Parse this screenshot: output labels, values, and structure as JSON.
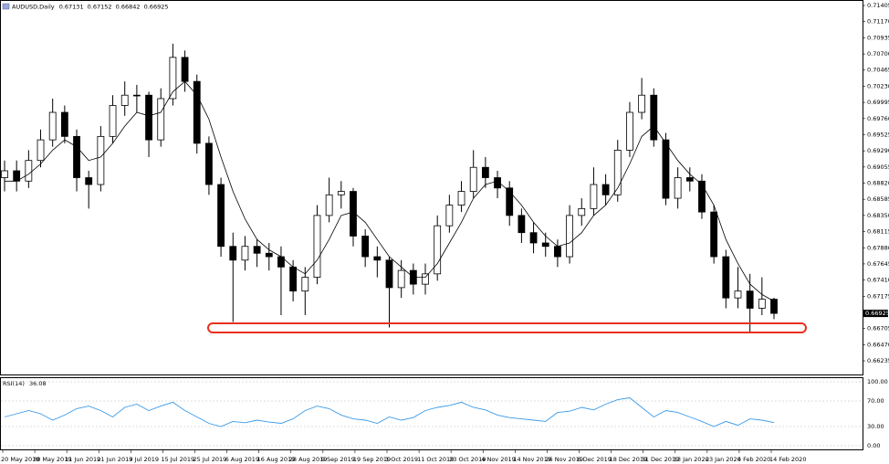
{
  "chart_data": [
    {
      "type": "candlestick",
      "title": "AUDUSD,Daily",
      "open": [
        0.689,
        0.69,
        0.6885,
        0.6915,
        0.6945,
        0.6985,
        0.695,
        0.689,
        0.688,
        0.695,
        0.6995,
        0.701,
        0.701,
        0.6945,
        0.7005,
        0.7065,
        0.703,
        0.694,
        0.688,
        0.679,
        0.677,
        0.679,
        0.678,
        0.6775,
        0.676,
        0.6725,
        0.6745,
        0.6835,
        0.6865,
        0.687,
        0.6805,
        0.6775,
        0.677,
        0.673,
        0.6755,
        0.6735,
        0.675,
        0.682,
        0.685,
        0.687,
        0.6905,
        0.689,
        0.6875,
        0.6835,
        0.681,
        0.6795,
        0.679,
        0.6775,
        0.6835,
        0.6845,
        0.688,
        0.6865,
        0.693,
        0.6985,
        0.701,
        0.6945,
        0.686,
        0.689,
        0.6885,
        0.684,
        0.6775,
        0.6715,
        0.6725,
        0.67,
        0.67131
      ],
      "high": [
        0.6915,
        0.6915,
        0.693,
        0.696,
        0.7005,
        0.6995,
        0.696,
        0.69,
        0.6965,
        0.701,
        0.703,
        0.7025,
        0.7015,
        0.702,
        0.7085,
        0.7075,
        0.704,
        0.695,
        0.689,
        0.681,
        0.6805,
        0.68,
        0.6795,
        0.679,
        0.677,
        0.676,
        0.685,
        0.689,
        0.6885,
        0.6875,
        0.6815,
        0.679,
        0.6775,
        0.677,
        0.6765,
        0.6765,
        0.6835,
        0.6865,
        0.6885,
        0.693,
        0.692,
        0.69,
        0.6885,
        0.6845,
        0.6825,
        0.681,
        0.68,
        0.685,
        0.686,
        0.6905,
        0.6895,
        0.6945,
        0.7,
        0.7035,
        0.702,
        0.6955,
        0.6905,
        0.6905,
        0.6895,
        0.685,
        0.6785,
        0.676,
        0.675,
        0.6745,
        0.67152
      ],
      "low": [
        0.687,
        0.687,
        0.6875,
        0.6905,
        0.6935,
        0.694,
        0.687,
        0.6845,
        0.687,
        0.694,
        0.698,
        0.6985,
        0.692,
        0.6935,
        0.6995,
        0.7015,
        0.6925,
        0.6865,
        0.6775,
        0.668,
        0.6755,
        0.676,
        0.6755,
        0.669,
        0.671,
        0.669,
        0.6735,
        0.6825,
        0.6845,
        0.679,
        0.676,
        0.6745,
        0.6672,
        0.6715,
        0.672,
        0.672,
        0.674,
        0.681,
        0.684,
        0.686,
        0.6875,
        0.686,
        0.682,
        0.6795,
        0.678,
        0.6775,
        0.676,
        0.6765,
        0.682,
        0.6835,
        0.685,
        0.6855,
        0.692,
        0.6975,
        0.6935,
        0.685,
        0.6845,
        0.687,
        0.683,
        0.6765,
        0.67,
        0.67,
        0.6665,
        0.669,
        0.66842
      ],
      "close": [
        0.69,
        0.6885,
        0.6915,
        0.6945,
        0.6985,
        0.695,
        0.689,
        0.688,
        0.695,
        0.6995,
        0.701,
        0.701,
        0.6945,
        0.7005,
        0.7065,
        0.703,
        0.694,
        0.688,
        0.679,
        0.677,
        0.679,
        0.678,
        0.6775,
        0.676,
        0.6725,
        0.6745,
        0.6835,
        0.6865,
        0.687,
        0.6805,
        0.6775,
        0.677,
        0.673,
        0.6755,
        0.6735,
        0.675,
        0.682,
        0.685,
        0.687,
        0.6905,
        0.689,
        0.6875,
        0.6835,
        0.681,
        0.6795,
        0.679,
        0.6775,
        0.6835,
        0.6845,
        0.688,
        0.6865,
        0.693,
        0.6985,
        0.701,
        0.6945,
        0.686,
        0.689,
        0.6885,
        0.684,
        0.6775,
        0.6715,
        0.6725,
        0.67,
        0.67131,
        0.66925
      ],
      "ma": [
        0.6885,
        0.6885,
        0.6895,
        0.691,
        0.693,
        0.6945,
        0.6935,
        0.6915,
        0.692,
        0.694,
        0.6965,
        0.6985,
        0.698,
        0.6985,
        0.7015,
        0.703,
        0.701,
        0.6975,
        0.692,
        0.687,
        0.683,
        0.68,
        0.6785,
        0.6775,
        0.676,
        0.675,
        0.677,
        0.68,
        0.6835,
        0.684,
        0.6825,
        0.68,
        0.6775,
        0.676,
        0.6745,
        0.6745,
        0.6765,
        0.6795,
        0.6825,
        0.686,
        0.688,
        0.6885,
        0.687,
        0.685,
        0.6825,
        0.6805,
        0.679,
        0.6795,
        0.681,
        0.6835,
        0.685,
        0.6875,
        0.691,
        0.695,
        0.6965,
        0.694,
        0.6915,
        0.6895,
        0.688,
        0.685,
        0.68,
        0.6765,
        0.6735,
        0.672,
        0.671
      ],
      "up_color": "#ffffff",
      "down_color": "#000000",
      "ma_color": "#000000",
      "ylim": [
        0.66036,
        0.71485
      ],
      "yticks": [
        0.71405,
        {
          "value": 0.7117,
          "label": "0.71170"
        },
        0.70935,
        {
          "value": 0.707,
          "label": "0.70700"
        },
        0.70465,
        {
          "value": 0.7023,
          "label": "0.70230"
        },
        0.69995,
        {
          "value": 0.6976,
          "label": "0.69760"
        },
        0.69525,
        {
          "value": 0.6929,
          "label": "0.69290"
        },
        0.69055,
        {
          "value": 0.6882,
          "label": "0.68820"
        },
        0.68585,
        {
          "value": 0.6835,
          "label": "0.68350"
        },
        0.68115,
        {
          "value": 0.6788,
          "label": "0.67880"
        },
        0.67645,
        {
          "value": 0.6741,
          "label": "0.67410"
        },
        0.67175,
        0.66705,
        {
          "value": 0.6647,
          "label": "0.66470"
        },
        0.66235
      ],
      "x_labels": [
        "20 May 2019",
        "30 May 2019",
        "11 Jun 2019",
        "21 Jun 2019",
        "3 Jul 2019",
        "15 Jul 2019",
        "25 Jul 2019",
        "6 Aug 2019",
        "16 Aug 2019",
        "28 Aug 2019",
        "9 Sep 2019",
        "19 Sep 2019",
        "1 Oct 2019",
        "11 Oct 2019",
        "23 Oct 2019",
        "4 Nov 2019",
        "14 Nov 2019",
        "26 Nov 2019",
        "6 Dec 2019",
        "18 Dec 2019",
        "31 Dec 2019",
        "13 Jan 2020",
        "23 Jan 2020",
        "4 Feb 2020",
        "14 Feb 2020"
      ]
    },
    {
      "type": "line",
      "title": "RSI(14)",
      "color": "#3a9ae8",
      "values": [
        45,
        50,
        55,
        50,
        40,
        48,
        58,
        62,
        55,
        45,
        60,
        65,
        55,
        62,
        68,
        55,
        45,
        35,
        30,
        38,
        36,
        40,
        37,
        35,
        42,
        55,
        62,
        58,
        48,
        42,
        40,
        35,
        45,
        40,
        44,
        55,
        60,
        63,
        68,
        60,
        56,
        48,
        44,
        42,
        40,
        38,
        52,
        54,
        60,
        56,
        65,
        72,
        75,
        60,
        45,
        55,
        52,
        45,
        38,
        30,
        38,
        32,
        42,
        40,
        36.08
      ],
      "ylim": [
        0,
        100
      ],
      "yticks": [
        {
          "value": 100,
          "label": "100.00"
        },
        {
          "value": 70,
          "label": "70.00"
        },
        {
          "value": 30,
          "label": "30.00"
        },
        {
          "value": 0,
          "label": "0.00"
        }
      ],
      "grid": true
    }
  ]
}
